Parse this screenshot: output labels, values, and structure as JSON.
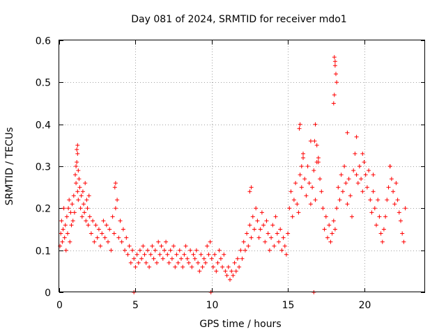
{
  "chart_data": {
    "type": "scatter",
    "title": "Day 081 of 2024, SRMTID for receiver mdo1",
    "xlabel": "GPS time / hours",
    "ylabel": "SRMTID / TECUs",
    "xlim": [
      0,
      24
    ],
    "ylim": [
      0,
      0.6
    ],
    "xticks": [
      0,
      5,
      10,
      15,
      20
    ],
    "xtick_labels": [
      "0",
      "5",
      "10",
      "15",
      "20"
    ],
    "yticks": [
      0,
      0.1,
      0.2,
      0.3,
      0.4,
      0.5,
      0.6
    ],
    "ytick_labels": [
      "0",
      "0.1",
      "0.2",
      "0.3",
      "0.4",
      "0.5",
      "0.6"
    ],
    "grid": true,
    "marker": "+",
    "color": "#ff0000",
    "series": [
      {
        "name": "SRMTID",
        "x": [
          0.05,
          0.1,
          0.15,
          0.2,
          0.25,
          0.3,
          0.35,
          0.4,
          0.45,
          0.5,
          0.55,
          0.6,
          0.65,
          0.7,
          0.75,
          0.8,
          0.85,
          0.9,
          0.95,
          1.0,
          1.05,
          1.1,
          1.15,
          1.2,
          1.25,
          1.3,
          1.35,
          1.4,
          1.45,
          1.5,
          1.55,
          1.6,
          1.65,
          1.7,
          1.75,
          1.8,
          1.85,
          1.9,
          1.95,
          2.0,
          2.1,
          2.2,
          2.3,
          2.4,
          2.5,
          2.6,
          2.7,
          2.8,
          2.9,
          3.0,
          3.1,
          3.2,
          3.3,
          3.4,
          3.5,
          3.6,
          3.7,
          3.8,
          3.9,
          4.0,
          4.1,
          4.2,
          4.3,
          4.4,
          4.5,
          4.6,
          4.7,
          4.8,
          4.9,
          5.0,
          5.1,
          5.2,
          5.3,
          5.4,
          5.5,
          5.6,
          5.7,
          5.8,
          5.9,
          6.0,
          6.1,
          6.2,
          6.3,
          6.4,
          6.5,
          6.6,
          6.7,
          6.8,
          6.9,
          7.0,
          7.1,
          7.2,
          7.3,
          7.4,
          7.5,
          7.6,
          7.7,
          7.8,
          7.9,
          8.0,
          8.1,
          8.2,
          8.3,
          8.4,
          8.5,
          8.6,
          8.7,
          8.8,
          8.9,
          9.0,
          9.1,
          9.2,
          9.3,
          9.4,
          9.5,
          9.6,
          9.7,
          9.8,
          9.9,
          10.0,
          10.1,
          10.2,
          10.3,
          10.4,
          10.5,
          10.6,
          10.7,
          10.8,
          10.9,
          11.0,
          11.1,
          11.2,
          11.3,
          11.4,
          11.5,
          11.6,
          11.7,
          11.8,
          11.9,
          12.0,
          12.1,
          12.2,
          12.3,
          12.4,
          12.5,
          12.6,
          12.7,
          12.8,
          12.9,
          13.0,
          13.1,
          13.2,
          13.3,
          13.4,
          13.5,
          13.6,
          13.7,
          13.8,
          13.9,
          14.0,
          14.1,
          14.2,
          14.3,
          14.4,
          14.5,
          14.6,
          14.7,
          14.8,
          14.9,
          15.0,
          15.1,
          15.2,
          15.3,
          15.4,
          15.5,
          15.6,
          15.7,
          15.8,
          15.9,
          16.0,
          16.1,
          16.2,
          16.3,
          16.4,
          16.5,
          16.6,
          16.7,
          16.8,
          16.9,
          17.0,
          17.1,
          17.2,
          17.3,
          17.4,
          17.5,
          17.6,
          17.7,
          17.8,
          17.9,
          18.0,
          18.1,
          18.2,
          18.3,
          18.4,
          18.5,
          18.6,
          18.7,
          18.8,
          18.9,
          19.0,
          19.1,
          19.2,
          19.3,
          19.4,
          19.5,
          19.6,
          19.7,
          19.8,
          19.9,
          20.0,
          20.1,
          20.2,
          20.3,
          20.4,
          20.5,
          20.6,
          20.7,
          20.8,
          20.9,
          21.0,
          21.1,
          21.2,
          21.3,
          21.4,
          21.5,
          21.6,
          21.7,
          21.8,
          21.9,
          22.0,
          22.1,
          22.2,
          22.3,
          22.4,
          22.5,
          22.6,
          22.7,
          1.15,
          1.2,
          1.25,
          18.05,
          18.1,
          18.15,
          18.2,
          16.75,
          16.8,
          15.75,
          15.8,
          18.9,
          3.7,
          3.65,
          4.9,
          9.95,
          16.7,
          18.05,
          18.0,
          18.1,
          1.2,
          1.1,
          15.9,
          16.0,
          16.9,
          19.9,
          20.6,
          21.7,
          17.0,
          16.5,
          19.5,
          12.5,
          12.6
        ],
        "y": [
          0.11,
          0.14,
          0.17,
          0.12,
          0.15,
          0.2,
          0.13,
          0.16,
          0.1,
          0.18,
          0.14,
          0.2,
          0.22,
          0.12,
          0.19,
          0.16,
          0.21,
          0.17,
          0.23,
          0.19,
          0.28,
          0.26,
          0.31,
          0.24,
          0.22,
          0.27,
          0.25,
          0.2,
          0.23,
          0.18,
          0.24,
          0.21,
          0.19,
          0.26,
          0.17,
          0.22,
          0.2,
          0.16,
          0.23,
          0.18,
          0.14,
          0.17,
          0.12,
          0.16,
          0.13,
          0.15,
          0.11,
          0.14,
          0.17,
          0.13,
          0.16,
          0.12,
          0.15,
          0.1,
          0.18,
          0.14,
          0.2,
          0.22,
          0.13,
          0.17,
          0.12,
          0.15,
          0.1,
          0.13,
          0.09,
          0.11,
          0.07,
          0.1,
          0.08,
          0.06,
          0.09,
          0.07,
          0.1,
          0.08,
          0.11,
          0.09,
          0.07,
          0.1,
          0.06,
          0.09,
          0.11,
          0.08,
          0.1,
          0.07,
          0.12,
          0.09,
          0.11,
          0.08,
          0.1,
          0.12,
          0.09,
          0.07,
          0.1,
          0.08,
          0.11,
          0.06,
          0.09,
          0.07,
          0.1,
          0.08,
          0.06,
          0.09,
          0.11,
          0.08,
          0.07,
          0.1,
          0.06,
          0.09,
          0.08,
          0.1,
          0.07,
          0.05,
          0.09,
          0.06,
          0.08,
          0.07,
          0.11,
          0.09,
          0.12,
          0.08,
          0.06,
          0.09,
          0.05,
          0.07,
          0.1,
          0.08,
          0.06,
          0.09,
          0.05,
          0.04,
          0.06,
          0.03,
          0.05,
          0.04,
          0.07,
          0.05,
          0.08,
          0.06,
          0.1,
          0.08,
          0.12,
          0.1,
          0.14,
          0.11,
          0.16,
          0.13,
          0.18,
          0.15,
          0.2,
          0.17,
          0.13,
          0.15,
          0.19,
          0.16,
          0.12,
          0.17,
          0.14,
          0.1,
          0.13,
          0.16,
          0.11,
          0.18,
          0.14,
          0.12,
          0.15,
          0.1,
          0.13,
          0.11,
          0.09,
          0.14,
          0.2,
          0.24,
          0.18,
          0.22,
          0.26,
          0.21,
          0.19,
          0.28,
          0.25,
          0.32,
          0.27,
          0.23,
          0.3,
          0.26,
          0.21,
          0.25,
          0.29,
          0.22,
          0.35,
          0.31,
          0.27,
          0.24,
          0.2,
          0.15,
          0.18,
          0.13,
          0.16,
          0.12,
          0.14,
          0.17,
          0.15,
          0.2,
          0.25,
          0.22,
          0.28,
          0.24,
          0.3,
          0.26,
          0.21,
          0.27,
          0.23,
          0.18,
          0.29,
          0.33,
          0.28,
          0.26,
          0.3,
          0.27,
          0.24,
          0.31,
          0.28,
          0.25,
          0.29,
          0.22,
          0.19,
          0.24,
          0.2,
          0.16,
          0.22,
          0.18,
          0.14,
          0.12,
          0.15,
          0.18,
          0.22,
          0.25,
          0.3,
          0.27,
          0.24,
          0.21,
          0.26,
          0.22,
          0.19,
          0.17,
          0.14,
          0.12,
          0.2,
          0.34,
          0.33,
          0.29,
          0.56,
          0.55,
          0.52,
          0.5,
          0.36,
          0.4,
          0.39,
          0.4,
          0.38,
          0.26,
          0.25,
          0.0,
          0.0,
          0.0,
          0.47,
          0.45,
          0.54,
          0.35,
          0.3,
          0.3,
          0.33,
          0.31,
          0.33,
          0.28,
          0.3,
          0.32,
          0.36,
          0.37,
          0.24,
          0.25
        ]
      }
    ]
  }
}
